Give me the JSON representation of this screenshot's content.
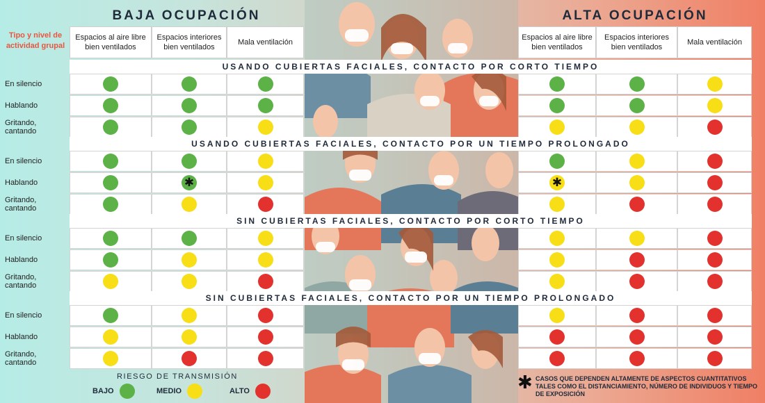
{
  "headings": {
    "low": "BAJA OCUPACIÓN",
    "high": "ALTA OCUPACIÓN"
  },
  "group_label": "Tipo y nivel de actividad grupal",
  "columns": [
    "Espacios al aire libre bien ventilados",
    "Espacios interiores bien ventilados",
    "Mala ventilación"
  ],
  "row_labels": [
    "En silencio",
    "Hablando",
    "Gritando, cantando"
  ],
  "risk_colors": {
    "bajo": "#5cb147",
    "medio": "#f7de16",
    "alto": "#e3312e"
  },
  "icons": {
    "asterisk": "asterisk-icon",
    "crowd": "crowd-illustration"
  },
  "sections": [
    {
      "title": "USANDO CUBIERTAS FACIALES, CONTACTO POR CORTO TIEMPO",
      "low": [
        [
          "bajo",
          "bajo",
          "bajo"
        ],
        [
          "bajo",
          "bajo",
          "bajo"
        ],
        [
          "bajo",
          "bajo",
          "medio"
        ]
      ],
      "high": [
        [
          "bajo",
          "bajo",
          "medio"
        ],
        [
          "bajo",
          "bajo",
          "medio"
        ],
        [
          "medio",
          "medio",
          "alto"
        ]
      ]
    },
    {
      "title": "USANDO CUBIERTAS FACIALES, CONTACTO POR UN TIEMPO PROLONGADO",
      "low": [
        [
          "bajo",
          "bajo",
          "medio"
        ],
        [
          "bajo",
          "bajo*",
          "medio"
        ],
        [
          "bajo",
          "medio",
          "alto"
        ]
      ],
      "high": [
        [
          "bajo",
          "medio",
          "alto"
        ],
        [
          "medio*",
          "medio",
          "alto"
        ],
        [
          "medio",
          "alto",
          "alto"
        ]
      ]
    },
    {
      "title": "SIN CUBIERTAS FACIALES, CONTACTO POR CORTO TIEMPO",
      "low": [
        [
          "bajo",
          "bajo",
          "medio"
        ],
        [
          "bajo",
          "medio",
          "medio"
        ],
        [
          "medio",
          "medio",
          "alto"
        ]
      ],
      "high": [
        [
          "medio",
          "medio",
          "alto"
        ],
        [
          "medio",
          "alto",
          "alto"
        ],
        [
          "medio",
          "alto",
          "alto"
        ]
      ]
    },
    {
      "title": "SIN CUBIERTAS FACIALES, CONTACTO POR UN TIEMPO PROLONGADO",
      "low": [
        [
          "bajo",
          "medio",
          "alto"
        ],
        [
          "medio",
          "medio",
          "alto"
        ],
        [
          "medio",
          "alto",
          "alto"
        ]
      ],
      "high": [
        [
          "medio",
          "alto",
          "alto"
        ],
        [
          "alto",
          "alto",
          "alto"
        ],
        [
          "alto",
          "alto",
          "alto"
        ]
      ]
    }
  ],
  "legend": {
    "title": "RIESGO DE TRANSMISIÓN",
    "items": [
      {
        "key": "bajo",
        "label": "BAJO"
      },
      {
        "key": "medio",
        "label": "MEDIO"
      },
      {
        "key": "alto",
        "label": "ALTO"
      }
    ]
  },
  "footnote": {
    "symbol": "✱",
    "text": "CASOS QUE DEPENDEN ALTAMENTE DE ASPECTOS CUANTITATIVOS TALES COMO EL DISTANCIAMIENTO, NÚMERO DE INDIVIDUOS Y TIEMPO DE EXPOSICIÓN"
  }
}
